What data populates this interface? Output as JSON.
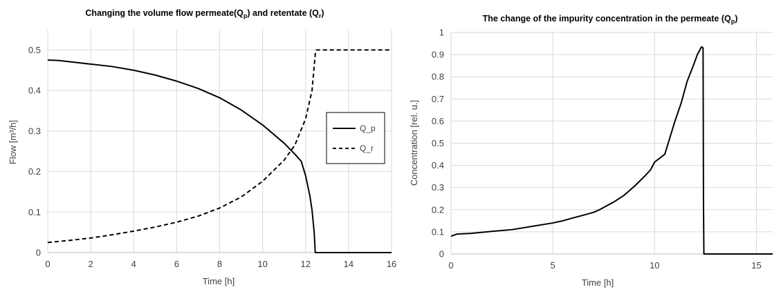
{
  "chart_data": [
    {
      "type": "line",
      "title": "Changing the volume flow permeate(Q_p) and retentate (Q_r)",
      "title_parts": {
        "before": "Changing the volume flow permeate(Q",
        "sub1": "p",
        "middle": ") and retentate (Q",
        "sub2": "r",
        "after": ")"
      },
      "xlabel": "Time [h]",
      "ylabel": "Flow [m³/h]",
      "xlim": [
        0,
        16
      ],
      "ylim": [
        0,
        0.55
      ],
      "xticks": [
        0,
        2,
        4,
        6,
        8,
        10,
        12,
        14,
        16
      ],
      "yticks": [
        0,
        0.1,
        0.2,
        0.3,
        0.4,
        0.5
      ],
      "grid": true,
      "legend_position": "right",
      "series": [
        {
          "name": "Q_p",
          "style": "solid",
          "x": [
            0,
            0.5,
            1,
            2,
            3,
            4,
            5,
            6,
            7,
            8,
            9,
            10,
            11,
            11.5,
            11.8,
            12,
            12.2,
            12.3,
            12.4,
            12.45,
            12.5,
            13,
            14,
            15,
            16
          ],
          "y": [
            0.475,
            0.474,
            0.471,
            0.465,
            0.459,
            0.45,
            0.438,
            0.423,
            0.405,
            0.382,
            0.352,
            0.315,
            0.27,
            0.243,
            0.225,
            0.19,
            0.14,
            0.105,
            0.05,
            0.0,
            0.0,
            0.0,
            0.0,
            0.0,
            0.0
          ]
        },
        {
          "name": "Q_r",
          "style": "dashed",
          "x": [
            0,
            1,
            2,
            3,
            4,
            5,
            6,
            7,
            8,
            9,
            10,
            11,
            11.5,
            12,
            12.3,
            12.45,
            12.5,
            13,
            14,
            15,
            16
          ],
          "y": [
            0.025,
            0.03,
            0.036,
            0.044,
            0.053,
            0.063,
            0.075,
            0.09,
            0.11,
            0.137,
            0.176,
            0.228,
            0.265,
            0.33,
            0.4,
            0.49,
            0.5,
            0.5,
            0.5,
            0.5,
            0.5
          ]
        }
      ]
    },
    {
      "type": "line",
      "title": "The change of the impurity concentration in the permeate (Q_p)",
      "title_parts": {
        "before": "The change of the impurity concentration in the permeate (Q",
        "sub1": "p",
        "after": ")"
      },
      "xlabel": "Time [h]",
      "ylabel": "Concentration [rel. u.]",
      "xlim": [
        0,
        15.8
      ],
      "ylim": [
        0,
        1
      ],
      "xticks": [
        0,
        5,
        10,
        15
      ],
      "yticks": [
        0,
        0.1,
        0.2,
        0.3,
        0.4,
        0.5,
        0.6,
        0.7,
        0.8,
        0.9,
        1
      ],
      "grid": true,
      "series": [
        {
          "style": "solid",
          "x": [
            0,
            0.3,
            1,
            2,
            3,
            4,
            5,
            5.5,
            6,
            6.5,
            7,
            7.3,
            8,
            8.5,
            9,
            9.5,
            9.8,
            10,
            10.5,
            11,
            11.3,
            11.6,
            11.9,
            12.1,
            12.3,
            12.38,
            12.4,
            12.42,
            12.45,
            13,
            14,
            15,
            15.8
          ],
          "y": [
            0.08,
            0.09,
            0.093,
            0.102,
            0.11,
            0.125,
            0.14,
            0.15,
            0.163,
            0.175,
            0.188,
            0.2,
            0.235,
            0.265,
            0.305,
            0.35,
            0.38,
            0.415,
            0.45,
            0.6,
            0.68,
            0.78,
            0.85,
            0.9,
            0.935,
            0.93,
            0.24,
            0.0,
            0.0,
            0.0,
            0.0,
            0.0,
            0.0
          ]
        }
      ]
    }
  ]
}
